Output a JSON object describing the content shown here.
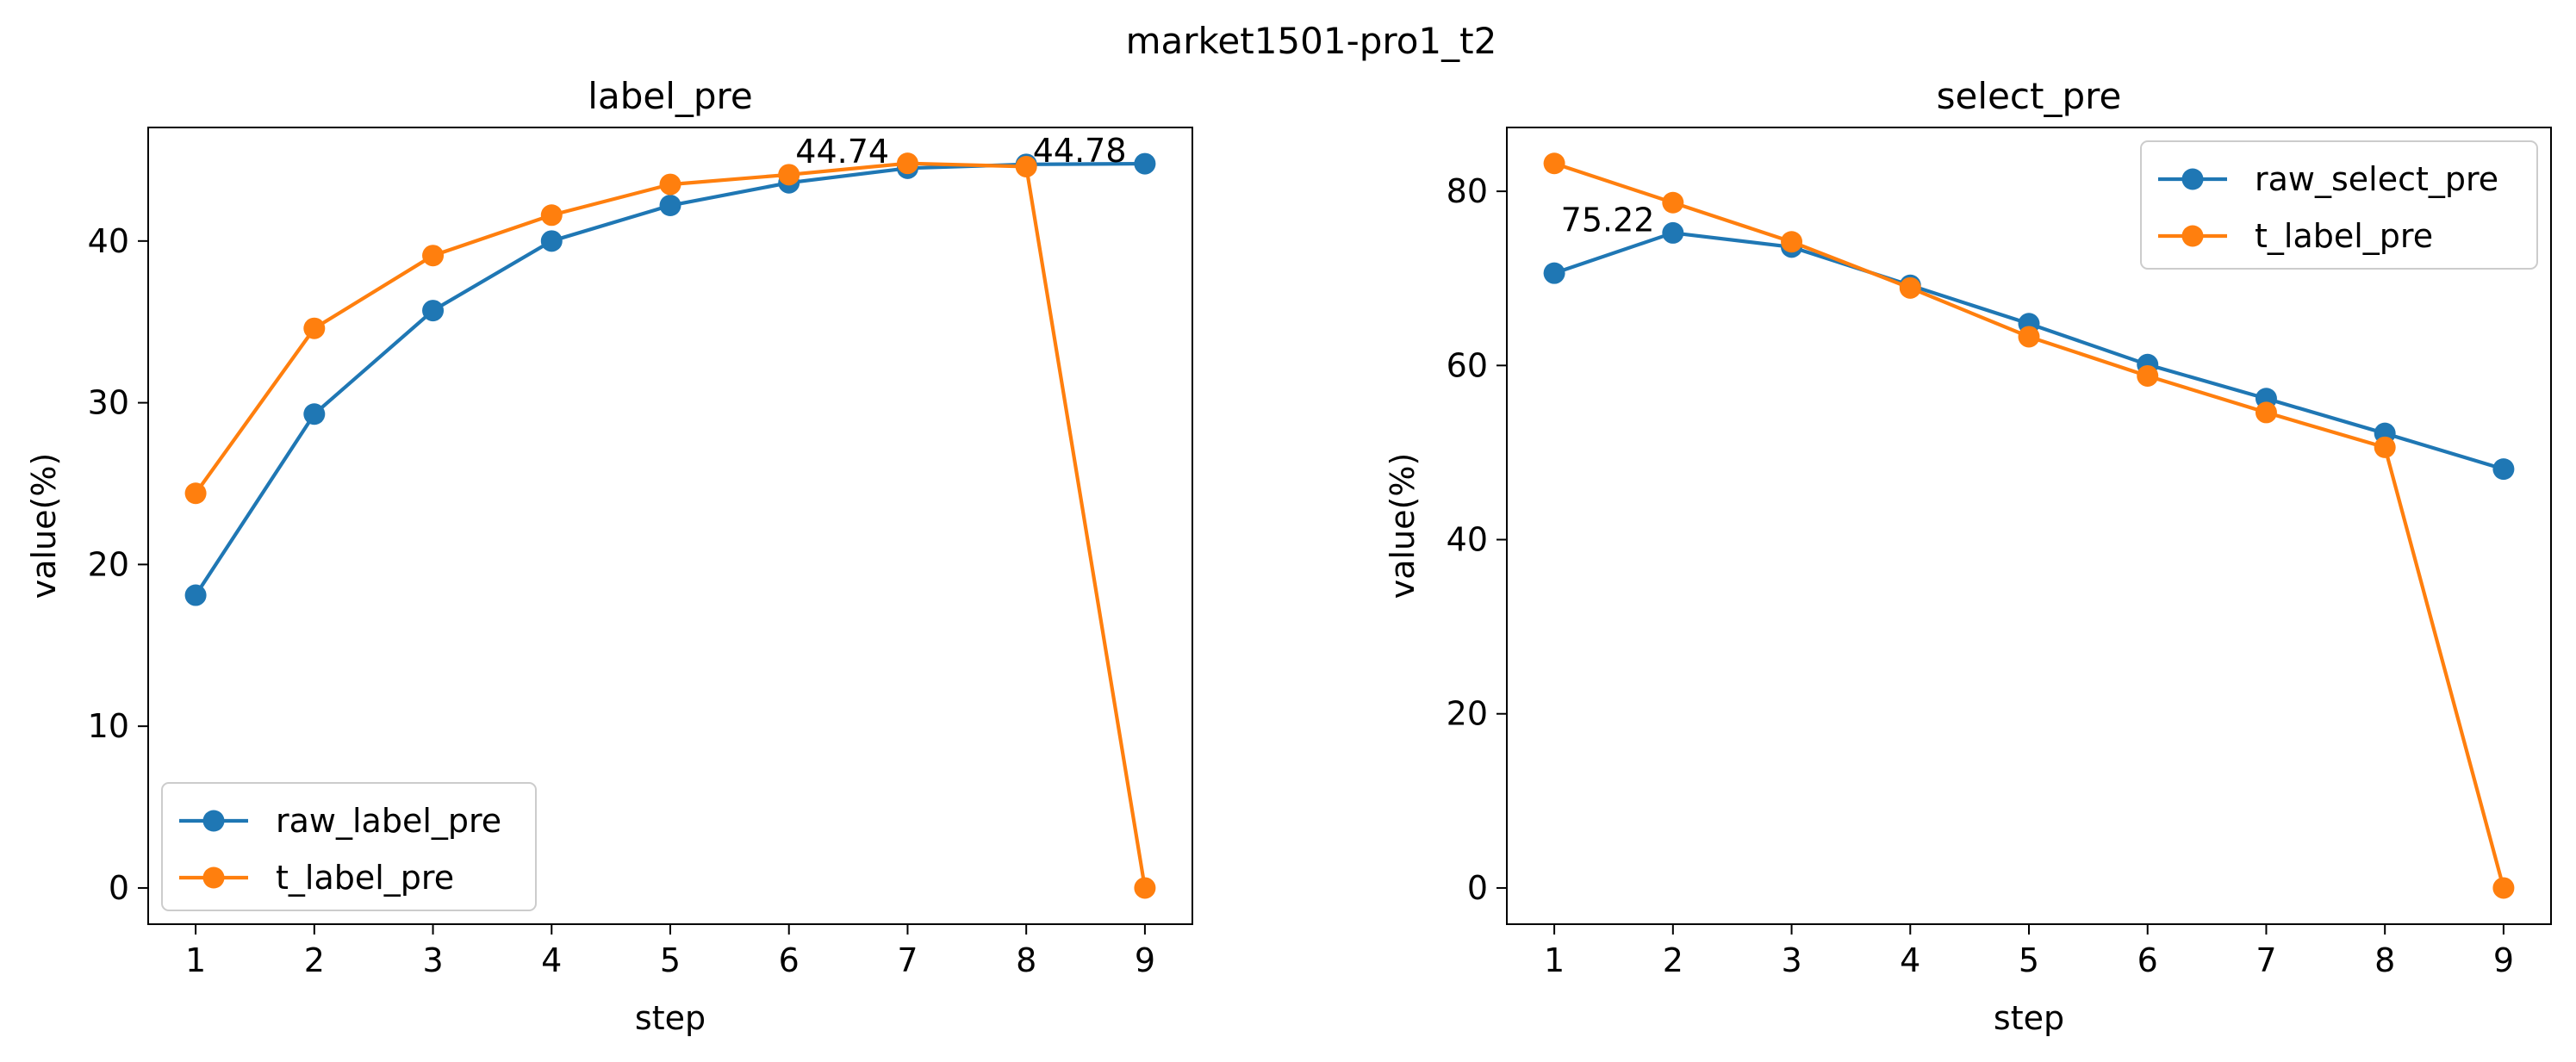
{
  "figure_title": "market1501-pro1_t2",
  "colors": {
    "raw": "#1f77b4",
    "t": "#ff7f0e"
  },
  "chart_data": [
    {
      "type": "line",
      "title": "label_pre",
      "xlabel": "step",
      "ylabel": "value(%)",
      "x": [
        1,
        2,
        3,
        4,
        5,
        6,
        7,
        8,
        9
      ],
      "xlim": [
        0.6,
        9.4
      ],
      "ylim": [
        -2.24,
        47.02
      ],
      "yticks": [
        0,
        10,
        20,
        30,
        40
      ],
      "legend": "lower-left",
      "grid": false,
      "series": [
        {
          "name": "raw_label_pre",
          "color": "#1f77b4",
          "values": [
            18.1,
            29.3,
            35.7,
            40.0,
            42.2,
            43.6,
            44.5,
            44.74,
            44.78
          ]
        },
        {
          "name": "t_label_pre",
          "color": "#ff7f0e",
          "values": [
            24.4,
            34.6,
            39.1,
            41.6,
            43.5,
            44.1,
            44.8,
            44.6,
            0.0
          ]
        }
      ],
      "annotations": [
        {
          "text": "44.74",
          "x": 6.45,
          "y": 44.74
        },
        {
          "text": "44.78",
          "x": 8.45,
          "y": 44.78
        }
      ]
    },
    {
      "type": "line",
      "title": "select_pre",
      "xlabel": "step",
      "ylabel": "value(%)",
      "x": [
        1,
        2,
        3,
        4,
        5,
        6,
        7,
        8,
        9
      ],
      "xlim": [
        0.6,
        9.4
      ],
      "ylim": [
        -4.16,
        87.33
      ],
      "yticks": [
        0,
        20,
        40,
        60,
        80
      ],
      "legend": "upper-right",
      "grid": false,
      "series": [
        {
          "name": "raw_select_pre",
          "color": "#1f77b4",
          "values": [
            70.6,
            75.22,
            73.6,
            69.2,
            64.8,
            60.1,
            56.2,
            52.2,
            48.1
          ]
        },
        {
          "name": "t_label_pre",
          "color": "#ff7f0e",
          "values": [
            83.2,
            78.7,
            74.2,
            68.9,
            63.3,
            58.8,
            54.6,
            50.6,
            0.0
          ]
        }
      ],
      "annotations": [
        {
          "text": "75.22",
          "x": 1.45,
          "y": 75.22
        }
      ]
    }
  ]
}
